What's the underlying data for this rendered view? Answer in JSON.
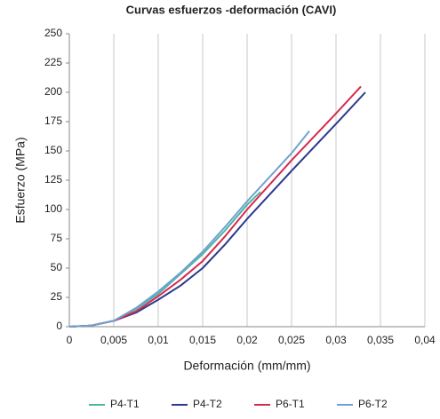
{
  "chart_data": {
    "type": "line",
    "title": "Curvas esfuerzos -deformación (CAVI)",
    "x_label": "Deformación (mm/mm)",
    "y_label": "Esfuerzo (MPa)",
    "xlim": [
      0,
      0.04
    ],
    "xticks": [
      0,
      {
        "value": 0.005,
        "label": "0,005"
      },
      {
        "value": 0.01,
        "label": "0,01"
      },
      {
        "value": 0.015,
        "label": "0,015"
      },
      {
        "value": 0.02,
        "label": "0,02"
      },
      {
        "value": 0.025,
        "label": "0,025"
      },
      {
        "value": 0.03,
        "label": "0,03"
      },
      {
        "value": 0.035,
        "label": "0,035"
      },
      {
        "value": 0.04,
        "label": "0,04"
      }
    ],
    "ylim": [
      0,
      250
    ],
    "yticks": [
      0,
      25,
      50,
      75,
      100,
      125,
      150,
      175,
      200,
      225,
      250
    ],
    "grid": "x",
    "legend": "bottom",
    "series": [
      {
        "name": "P4-T1",
        "color": "#4db3a4",
        "x": [
          0,
          0.0025,
          0.005,
          0.0075,
          0.01,
          0.0125,
          0.015,
          0.0175,
          0.02,
          0.0215
        ],
        "values": [
          0,
          1,
          5,
          15,
          28,
          45,
          62,
          82,
          104,
          115
        ]
      },
      {
        "name": "P4-T2",
        "color": "#2b3a8c",
        "x": [
          0,
          0.0025,
          0.005,
          0.0075,
          0.01,
          0.0125,
          0.015,
          0.0175,
          0.02,
          0.025,
          0.03,
          0.0333
        ],
        "values": [
          0,
          1,
          5,
          12,
          23,
          35,
          50,
          70,
          92,
          133,
          173,
          200
        ]
      },
      {
        "name": "P6-T1",
        "color": "#d62a4c",
        "x": [
          0,
          0.0025,
          0.005,
          0.0075,
          0.01,
          0.0125,
          0.015,
          0.0175,
          0.02,
          0.025,
          0.03,
          0.0328
        ],
        "values": [
          0,
          1,
          5,
          13,
          26,
          40,
          56,
          77,
          100,
          142,
          182,
          205
        ]
      },
      {
        "name": "P6-T2",
        "color": "#6fa3cf",
        "x": [
          0,
          0.0025,
          0.005,
          0.0075,
          0.01,
          0.0125,
          0.015,
          0.0175,
          0.02,
          0.025,
          0.027
        ],
        "values": [
          0,
          1,
          5,
          16,
          30,
          46,
          64,
          85,
          107,
          148,
          167
        ]
      }
    ]
  }
}
